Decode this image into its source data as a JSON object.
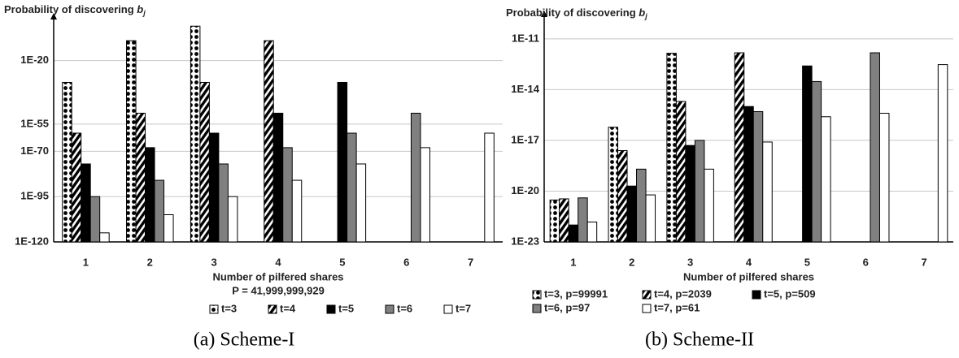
{
  "chart_data": [
    {
      "type": "bar",
      "log_y": true,
      "grid": true,
      "y_label": "Probability of discovering",
      "y_label_symbol": "b",
      "y_label_subscript": "j",
      "x_label": "Number  of pilfered shares",
      "annotation": "P = 41,999,999,929",
      "caption": "(a) Scheme-I",
      "categories": [
        "1",
        "2",
        "3",
        "4",
        "5",
        "6",
        "7"
      ],
      "ylim": [
        1e-120,
        1.0
      ],
      "yticks": [
        {
          "value": 1e-20,
          "label": "1E-20"
        },
        {
          "value": 1e-55,
          "label": "1E-55"
        },
        {
          "value": 1e-70,
          "label": "1E-70"
        },
        {
          "value": 1e-95,
          "label": "1E-95"
        },
        {
          "value": 1e-120,
          "label": "1E-120"
        }
      ],
      "series": [
        {
          "name": "t=3",
          "color": "#000000",
          "pattern": "dots",
          "values": [
            1e-32,
            1e-09,
            0.1,
            null,
            null,
            null,
            null
          ]
        },
        {
          "name": "t=4",
          "color": "#000000",
          "pattern": "stripes",
          "values": [
            1e-60,
            1e-49,
            1e-32,
            1e-09,
            null,
            null,
            null
          ]
        },
        {
          "name": "t=5",
          "color": "#000000",
          "values": [
            1e-77,
            1e-68,
            1e-60,
            1e-49,
            1e-32,
            null,
            null
          ]
        },
        {
          "name": "t=6",
          "color": "#808080",
          "values": [
            1e-95,
            1e-86,
            1e-77,
            1e-68,
            1e-60,
            1e-49,
            null
          ]
        },
        {
          "name": "t=7",
          "color": "#ffffff",
          "values": [
            1e-115,
            1e-105,
            1e-95,
            1e-86,
            1e-77,
            1e-68,
            1e-60
          ]
        }
      ]
    },
    {
      "type": "bar",
      "log_y": true,
      "grid": true,
      "y_label": "Probability of discovering",
      "y_label_symbol": "b",
      "y_label_subscript": "j",
      "x_label": "Number of pilfered shares",
      "caption": "(b) Scheme-II",
      "categories": [
        "1",
        "2",
        "3",
        "4",
        "5",
        "6",
        "7"
      ],
      "ylim": [
        1e-23,
        1e-10
      ],
      "yticks": [
        {
          "value": 1e-11,
          "label": "1E-11"
        },
        {
          "value": 1e-14,
          "label": "1E-14"
        },
        {
          "value": 1e-17,
          "label": "1E-17"
        },
        {
          "value": 1e-20,
          "label": "1E-20"
        },
        {
          "value": 1e-23,
          "label": "1E-23"
        }
      ],
      "series": [
        {
          "name": "t=3, p=99991",
          "color": "#000000",
          "pattern": "dots",
          "values": [
            3e-21,
            6e-17,
            1.4e-12,
            null,
            null,
            null,
            null
          ]
        },
        {
          "name": "t=4, p=2039",
          "color": "#000000",
          "pattern": "stripes",
          "values": [
            3.5e-21,
            2.5e-18,
            2e-15,
            1.5e-12,
            null,
            null,
            null
          ]
        },
        {
          "name": "t=5, p=509",
          "color": "#000000",
          "values": [
            1e-22,
            2e-20,
            5e-18,
            1e-15,
            2.5e-13,
            null,
            null
          ]
        },
        {
          "name": "t=6, p=97",
          "color": "#808080",
          "values": [
            4e-21,
            2e-19,
            1e-17,
            5e-16,
            3e-14,
            1.5e-12,
            null
          ]
        },
        {
          "name": "t=7, p=61",
          "color": "#ffffff",
          "values": [
            1.5e-22,
            6e-21,
            2e-19,
            8e-18,
            2.5e-16,
            4e-16,
            3e-13
          ]
        }
      ]
    }
  ]
}
